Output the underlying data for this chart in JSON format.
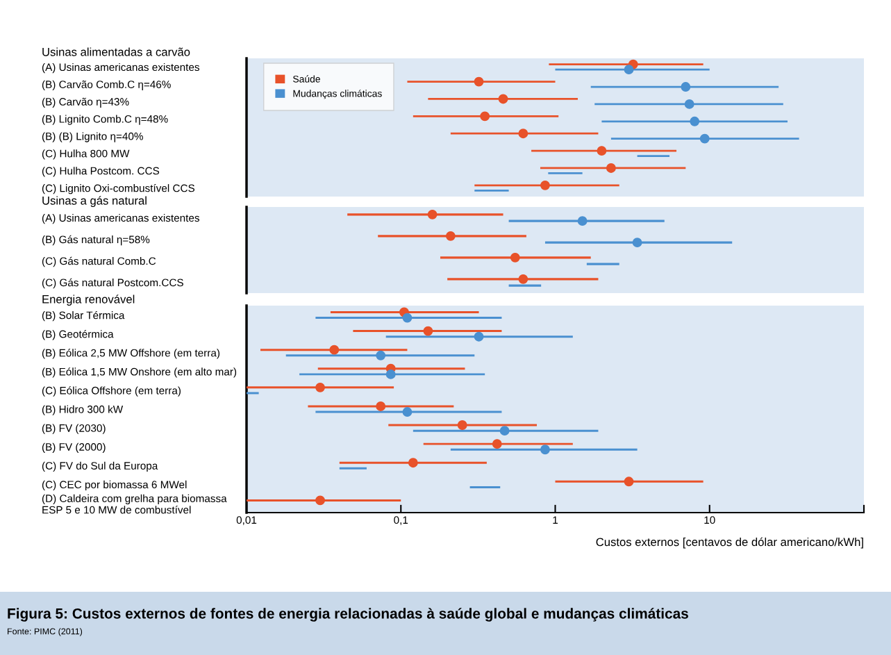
{
  "chart_data": [
    {
      "type": "bar",
      "orientation": "horizontal",
      "title": "Usinas alimentadas a carvão",
      "log": "x",
      "legend": "top left",
      "tick_labels": "y",
      "categories": [
        "(A) Usinas americanas existentes",
        "(B) Carvão Comb.C η=46%",
        "(B) Carvão η=43%",
        "(B) Lignito Comb.C η=48%",
        "(B) (B) Lignito η=40%",
        "(C) Hulha 800 MW",
        "(C) Hulha Postcom. CCS",
        "(C) Lignito Oxi-combustível CCS"
      ],
      "xlim": [
        0.01,
        100
      ],
      "series": [
        {
          "name": "Saúde",
          "color": "#e8522a",
          "base": [
            0.91,
            0.11,
            0.15,
            0.12,
            0.21,
            0.7,
            0.8,
            0.3
          ],
          "values": [
            8.19,
            0.89,
            1.25,
            0.93,
            1.69,
            5.4,
            6.2,
            2.3
          ]
        },
        {
          "name": "Mudanças climáticas",
          "color": "#4a90d0",
          "base": [
            1.0,
            1.7,
            1.8,
            2.0,
            2.3,
            3.4,
            0.9,
            0.3
          ],
          "values": [
            9,
            26.3,
            28.2,
            30,
            35.7,
            2.1,
            0.6,
            0.2
          ]
        },
        {
          "type": "scatter",
          "marker": "circle",
          "color": "#e8522a",
          "values": [
            3.2,
            0.32,
            0.46,
            0.35,
            0.62,
            2.0,
            2.3,
            0.86
          ]
        },
        {
          "type": "scatter",
          "marker": "circle",
          "color": "#4a90d0",
          "values": [
            3.0,
            7.0,
            7.4,
            8.0,
            9.3,
            null,
            null,
            null
          ]
        }
      ]
    },
    {
      "type": "bar",
      "orientation": "horizontal",
      "title": "Usinas a gás natural",
      "log": "x",
      "tick_labels": "y",
      "categories": [
        "(A) Usinas americanas existentes",
        "(B) Gás natural η=58%",
        "(C) Gás natural Comb.C",
        "(C) Gás natural Postcom.CCS"
      ],
      "xlim": [
        0.01,
        100
      ],
      "series": [
        {
          "color": "#e8522a",
          "base": [
            0.045,
            0.071,
            0.18,
            0.2
          ],
          "values": [
            0.415,
            0.579,
            1.52,
            1.7
          ]
        },
        {
          "color": "#4a90d0",
          "base": [
            0.5,
            0.86,
            1.6,
            0.5
          ],
          "values": [
            4.6,
            13.14,
            1.0,
            0.31
          ]
        },
        {
          "type": "scatter",
          "marker": "circle",
          "color": "#e8522a",
          "values": [
            0.16,
            0.21,
            0.55,
            0.62
          ]
        },
        {
          "type": "scatter",
          "marker": "circle",
          "color": "#4a90d0",
          "values": [
            1.5,
            3.4,
            null,
            null
          ]
        }
      ]
    },
    {
      "type": "bar",
      "orientation": "horizontal",
      "title": "Energia renovável",
      "log": "x",
      "xlabel": "Custos externos [centavos de dólar americano/kWh]",
      "categories": [
        "(B) Solar Térmica",
        "(B) Geotérmica",
        "(B) Eólica 2,5 MW Offshore (em terra)",
        "(B) Eólica 1,5 MW Onshore (em alto mar)",
        "(C) Eólica Offshore (em terra)",
        "(B) Hidro 300 kW",
        "(B) FV (2030)",
        "(B) FV (2000)",
        "(C) FV do Sul da Europa",
        "(C) CEC por biomassa 6 MWel",
        "(D) Caldeira com grelha para biomassa\nESP 5 e 10 MW de combustível"
      ],
      "xlim": [
        0.01,
        100
      ],
      "xticks": [
        {
          "value": 0.01,
          "label": "0,01"
        },
        {
          "value": 0.1,
          "label": "0,1"
        },
        1,
        10,
        {
          "value": 100,
          "label": null
        }
      ],
      "series": [
        {
          "color": "#e8522a",
          "base": [
            0.035,
            0.049,
            0.0123,
            0.029,
            0.01,
            0.025,
            0.083,
            0.14,
            0.04,
            1.0,
            0.01
          ],
          "values": [
            0.285,
            0.401,
            0.0977,
            0.231,
            0.08,
            0.195,
            0.677,
            1.16,
            0.32,
            8.1,
            0.09
          ]
        },
        {
          "color": "#4a90d0",
          "base": [
            0.028,
            0.08,
            0.018,
            0.022,
            0.01,
            0.028,
            0.12,
            0.21,
            0.04,
            0.28,
            null
          ],
          "values": [
            0.422,
            1.22,
            0.282,
            0.328,
            0.002,
            0.422,
            1.78,
            3.19,
            0.02,
            0.16,
            null
          ]
        },
        {
          "type": "scatter",
          "marker": "circle",
          "color": "#e8522a",
          "values": [
            0.105,
            0.15,
            0.037,
            0.086,
            0.03,
            0.074,
            0.25,
            0.42,
            0.12,
            3.0,
            0.03
          ]
        },
        {
          "type": "scatter",
          "marker": "circle",
          "color": "#4a90d0",
          "values": [
            0.11,
            0.32,
            0.074,
            0.086,
            null,
            0.11,
            0.47,
            0.86,
            null,
            null,
            null
          ]
        }
      ],
      "annotations": [
        "Figura 5: Custos externos de fontes de energia relacionadas à saúde global e mudanças climáticas",
        "Fonte: PIMC (2011)"
      ]
    }
  ]
}
